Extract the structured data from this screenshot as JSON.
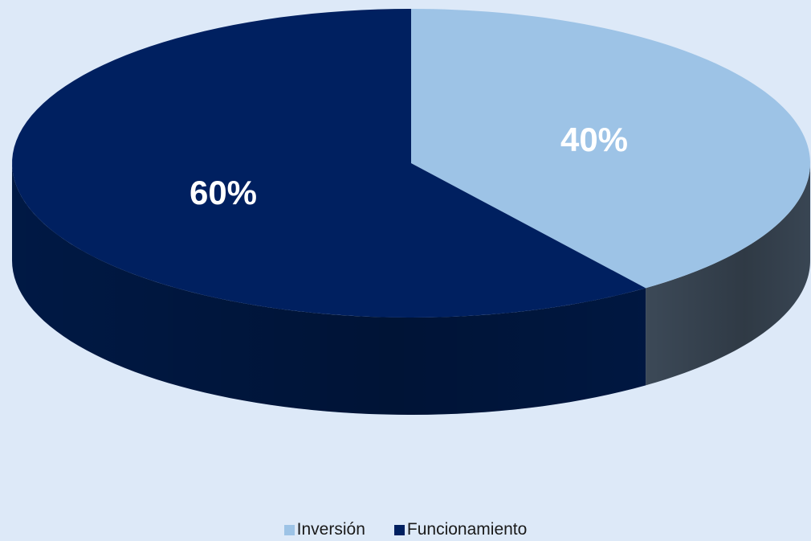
{
  "colors": {
    "background": "#dde9f8",
    "label_dark_slice": "#ffffff",
    "label_light_slice": "#ffffff"
  },
  "chart_data": {
    "type": "pie",
    "three_d": true,
    "categories": [
      "Inversión",
      "Funcionamiento"
    ],
    "values": [
      40,
      60
    ],
    "data_labels": [
      "40%",
      "60%"
    ],
    "colors": [
      "#9dc3e6",
      "#002060"
    ],
    "side_colors": [
      "#3f4d5c",
      "#001a48"
    ],
    "start": "12 o'clock, clockwise",
    "legend": "bottom-center",
    "title": ""
  }
}
